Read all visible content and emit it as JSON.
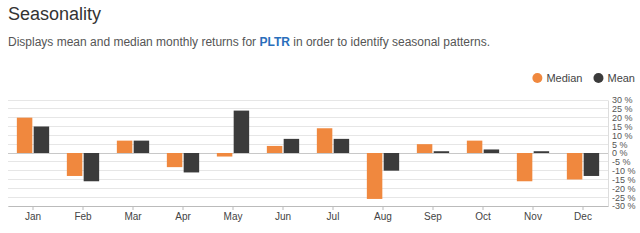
{
  "chart_data": {
    "type": "bar",
    "title": "Seasonality",
    "subtitle": [
      "Displays mean and median monthly returns for ",
      "PLTR",
      " in order to identify seasonal patterns."
    ],
    "categories": [
      "Jan",
      "Feb",
      "Mar",
      "Apr",
      "May",
      "Jun",
      "Jul",
      "Aug",
      "Sep",
      "Oct",
      "Nov",
      "Dec"
    ],
    "series": [
      {
        "name": "Median",
        "color": "#f0883e",
        "values": [
          20,
          -13,
          7,
          -8,
          -2,
          4,
          14,
          -26,
          5,
          7,
          -16,
          -15
        ]
      },
      {
        "name": "Mean",
        "color": "#3b3b3b",
        "values": [
          15,
          -16,
          7,
          -11,
          24,
          8,
          8,
          -10,
          1,
          2,
          1,
          -13
        ]
      }
    ],
    "ylim": [
      -30,
      30
    ],
    "yticks": [
      {
        "value": 30,
        "label": "30 %"
      },
      {
        "value": 25,
        "label": "25 %"
      },
      {
        "value": 20,
        "label": "20 %"
      },
      {
        "value": 15,
        "label": "15 %"
      },
      {
        "value": 10,
        "label": "10 %"
      },
      {
        "value": 5,
        "label": "5 %"
      },
      {
        "value": 0,
        "label": "0 %"
      },
      {
        "value": -5,
        "label": "-5 %"
      },
      {
        "value": -10,
        "label": "-10 %"
      },
      {
        "value": -15,
        "label": "-15 %"
      },
      {
        "value": -20,
        "label": "-20 %"
      },
      {
        "value": -25,
        "label": "-25 %"
      },
      {
        "value": -30,
        "label": "-30 %"
      }
    ],
    "grid": true,
    "legend": "top-right"
  }
}
